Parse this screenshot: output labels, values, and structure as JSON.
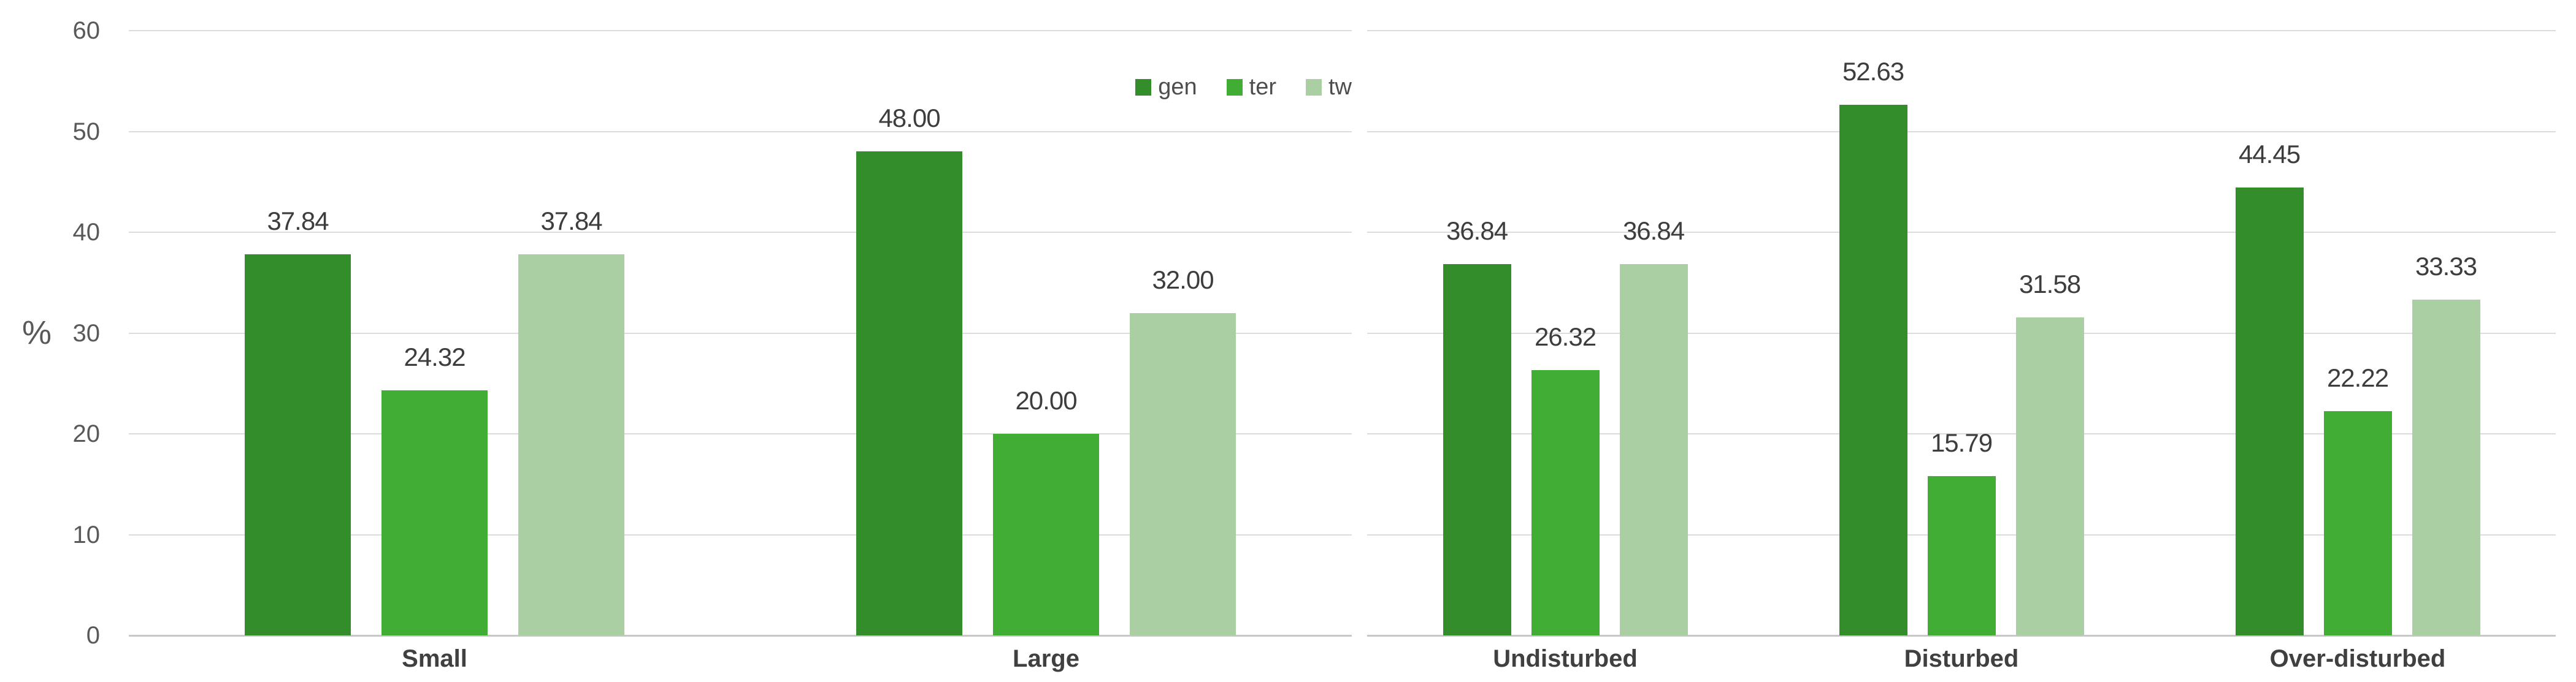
{
  "chart_data": {
    "type": "bar",
    "title": "",
    "ylabel": "%",
    "ylim": [
      0,
      60
    ],
    "yticks": [
      0,
      10,
      20,
      30,
      40,
      50,
      60
    ],
    "grid": true,
    "legend_position": "top-right-of-first-panel",
    "value_label_decimals": 2,
    "series_names": [
      "gen",
      "ter",
      "tw"
    ],
    "series_colors": [
      "#348D2B",
      "#42AD35",
      "#AACFA2"
    ],
    "panels": [
      {
        "categories": [
          "Small",
          "Large"
        ],
        "series": [
          {
            "name": "gen",
            "values": [
              37.84,
              48.0
            ]
          },
          {
            "name": "ter",
            "values": [
              24.32,
              20.0
            ]
          },
          {
            "name": "tw",
            "values": [
              37.84,
              32.0
            ]
          }
        ]
      },
      {
        "categories": [
          "Undisturbed",
          "Disturbed",
          "Over-disturbed"
        ],
        "series": [
          {
            "name": "gen",
            "values": [
              36.84,
              52.63,
              44.45
            ]
          },
          {
            "name": "ter",
            "values": [
              26.32,
              15.79,
              22.22
            ]
          },
          {
            "name": "tw",
            "values": [
              36.84,
              31.58,
              33.33
            ]
          }
        ]
      }
    ]
  },
  "colors": {
    "series": {
      "gen": "#348D2B",
      "ter": "#42AD35",
      "tw": "#AACFA2"
    },
    "gridline": "#DCDCDC",
    "axis_line": "#C8C8C8",
    "tick_text": "#595959",
    "value_label_text": "#3D3D3D",
    "category_text": "#404040",
    "background": "#FFFFFF"
  }
}
